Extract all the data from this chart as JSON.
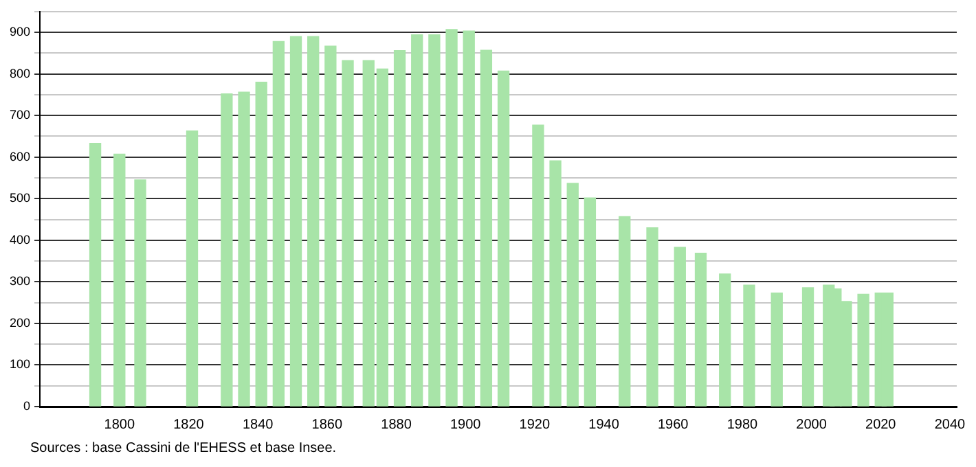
{
  "chart_data": {
    "type": "bar",
    "x": [
      1793,
      1800,
      1806,
      1821,
      1831,
      1836,
      1841,
      1846,
      1851,
      1856,
      1861,
      1866,
      1872,
      1876,
      1881,
      1886,
      1891,
      1896,
      1901,
      1906,
      1911,
      1921,
      1926,
      1931,
      1936,
      1946,
      1954,
      1962,
      1968,
      1975,
      1982,
      1990,
      1999,
      2005,
      2007,
      2010,
      2015,
      2020,
      2022
    ],
    "values": [
      633,
      607,
      545,
      663,
      752,
      756,
      780,
      878,
      890,
      890,
      867,
      832,
      832,
      812,
      856,
      894,
      894,
      907,
      903,
      857,
      807,
      677,
      591,
      537,
      502,
      457,
      430,
      383,
      369,
      319,
      292,
      273,
      286,
      292,
      283,
      253,
      270,
      273,
      273
    ],
    "color": "#a8e4a8",
    "xlim": [
      1777,
      2042
    ],
    "xticks": [
      1800,
      1820,
      1840,
      1860,
      1880,
      1900,
      1920,
      1940,
      1960,
      1980,
      2000,
      2020,
      2040
    ],
    "ylim": [
      0,
      950
    ],
    "yticks": [
      0,
      {
        "value": 50,
        "label": null
      },
      100,
      {
        "value": 150,
        "label": null
      },
      200,
      {
        "value": 250,
        "label": null
      },
      300,
      {
        "value": 350,
        "label": null
      },
      400,
      {
        "value": 450,
        "label": null
      },
      500,
      {
        "value": 550,
        "label": null
      },
      600,
      {
        "value": 650,
        "label": null
      },
      700,
      {
        "value": 750,
        "label": null
      },
      800,
      {
        "value": 850,
        "label": null
      },
      900,
      {
        "value": 950,
        "label": null
      }
    ],
    "grid": "y",
    "legend": false,
    "annotations": [
      "Sources : base Cassini de l'EHESS et base Insee."
    ]
  }
}
